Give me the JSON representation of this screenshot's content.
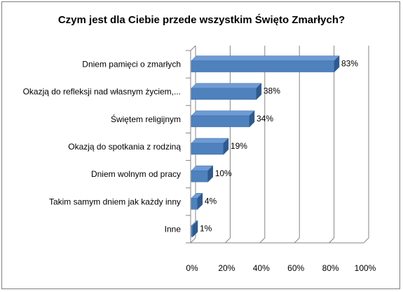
{
  "chart_data": {
    "type": "bar",
    "orientation": "horizontal",
    "style": "3d",
    "title": "Czym jest dla Ciebie przede wszystkim Święto Zmarłych?",
    "categories": [
      "Dniem pamięci o zmarłych",
      "Okazją do refleksji nad własnym życiem,...",
      "Świętem religijnym",
      "Okazją do spotkania z rodziną",
      "Dniem wolnym od pracy",
      "Takim samym dniem jak każdy inny",
      "Inne"
    ],
    "values": [
      83,
      38,
      34,
      19,
      10,
      4,
      1
    ],
    "data_labels": [
      "83%",
      "38%",
      "34%",
      "19%",
      "10%",
      "4%",
      "1%"
    ],
    "xlim": [
      0,
      100
    ],
    "x_ticks": [
      "0%",
      "20%",
      "40%",
      "60%",
      "80%",
      "100%"
    ],
    "grid": true,
    "legend": "none",
    "bar_color": "#4f81bd",
    "bar_top_color": "#6f9bd4",
    "bar_side_color": "#2f5a8e"
  }
}
